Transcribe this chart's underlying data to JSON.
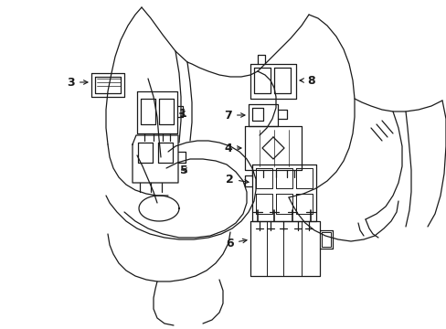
{
  "background_color": "#ffffff",
  "line_color": "#1a1a1a",
  "line_width": 0.9,
  "fig_width": 4.89,
  "fig_height": 3.6,
  "dpi": 100
}
